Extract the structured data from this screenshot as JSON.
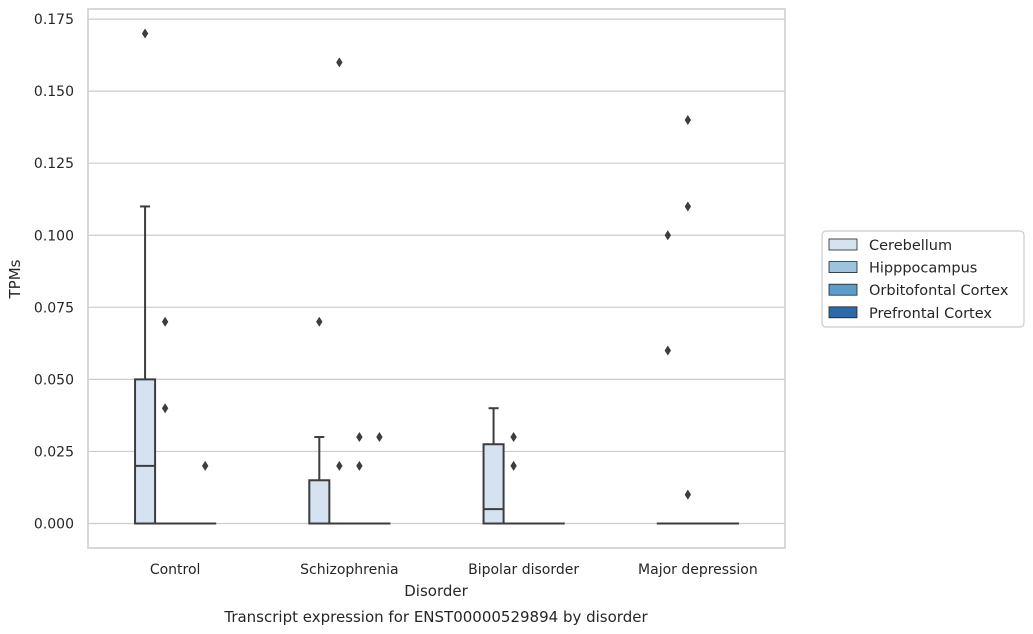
{
  "chart_data": {
    "type": "box",
    "title": "Transcript expression for ENST00000529894 by disorder",
    "xlabel": "Disorder",
    "ylabel": "TPMs",
    "ylim": [
      -0.0085,
      0.1785
    ],
    "yticks": [
      0.0,
      0.025,
      0.05,
      0.075,
      0.1,
      0.125,
      0.15,
      0.175
    ],
    "ytick_labels": [
      "0.000",
      "0.025",
      "0.050",
      "0.075",
      "0.100",
      "0.125",
      "0.150",
      "0.175"
    ],
    "grid": true,
    "legend_position": "right",
    "categories": [
      "Control",
      "Schizophrenia",
      "Bipolar disorder",
      "Major depression"
    ],
    "series": [
      {
        "name": "Cerebellum",
        "color": "#d5e3f1",
        "boxes": [
          {
            "q1": 0.0,
            "median": 0.02,
            "q3": 0.05,
            "whisker_low": 0.0,
            "whisker_high": 0.11,
            "outliers": [
              0.17
            ]
          },
          {
            "q1": 0.0,
            "median": 0.0,
            "q3": 0.015,
            "whisker_low": 0.0,
            "whisker_high": 0.03,
            "outliers": [
              0.07
            ]
          },
          {
            "q1": 0.0,
            "median": 0.005,
            "q3": 0.0275,
            "whisker_low": 0.0,
            "whisker_high": 0.04,
            "outliers": []
          },
          {
            "q1": 0.0,
            "median": 0.0,
            "q3": 0.0,
            "whisker_low": 0.0,
            "whisker_high": 0.0,
            "outliers": [
              0.06,
              0.1
            ]
          }
        ]
      },
      {
        "name": "Hipppocampus",
        "color": "#9cc4de",
        "boxes": [
          {
            "q1": 0.0,
            "median": 0.0,
            "q3": 0.0,
            "whisker_low": 0.0,
            "whisker_high": 0.0,
            "outliers": [
              0.04,
              0.07
            ]
          },
          {
            "q1": 0.0,
            "median": 0.0,
            "q3": 0.0,
            "whisker_low": 0.0,
            "whisker_high": 0.0,
            "outliers": [
              0.02,
              0.16
            ]
          },
          {
            "q1": 0.0,
            "median": 0.0,
            "q3": 0.0,
            "whisker_low": 0.0,
            "whisker_high": 0.0,
            "outliers": [
              0.02,
              0.03
            ]
          },
          {
            "q1": 0.0,
            "median": 0.0,
            "q3": 0.0,
            "whisker_low": 0.0,
            "whisker_high": 0.0,
            "outliers": [
              0.01,
              0.11,
              0.14
            ]
          }
        ]
      },
      {
        "name": "Orbitofontal Cortex",
        "color": "#5c9ec9",
        "boxes": [
          {
            "q1": 0.0,
            "median": 0.0,
            "q3": 0.0,
            "whisker_low": 0.0,
            "whisker_high": 0.0,
            "outliers": []
          },
          {
            "q1": 0.0,
            "median": 0.0,
            "q3": 0.0,
            "whisker_low": 0.0,
            "whisker_high": 0.0,
            "outliers": [
              0.02,
              0.03
            ]
          },
          {
            "q1": 0.0,
            "median": 0.0,
            "q3": 0.0,
            "whisker_low": 0.0,
            "whisker_high": 0.0,
            "outliers": []
          },
          {
            "q1": 0.0,
            "median": 0.0,
            "q3": 0.0,
            "whisker_low": 0.0,
            "whisker_high": 0.0,
            "outliers": []
          }
        ]
      },
      {
        "name": "Prefrontal Cortex",
        "color": "#2b6ca8",
        "boxes": [
          {
            "q1": 0.0,
            "median": 0.0,
            "q3": 0.0,
            "whisker_low": 0.0,
            "whisker_high": 0.0,
            "outliers": [
              0.02
            ]
          },
          {
            "q1": 0.0,
            "median": 0.0,
            "q3": 0.0,
            "whisker_low": 0.0,
            "whisker_high": 0.0,
            "outliers": [
              0.03
            ]
          },
          {
            "q1": 0.0,
            "median": 0.0,
            "q3": 0.0,
            "whisker_low": 0.0,
            "whisker_high": 0.0,
            "outliers": []
          },
          {
            "q1": 0.0,
            "median": 0.0,
            "q3": 0.0,
            "whisker_low": 0.0,
            "whisker_high": 0.0,
            "outliers": []
          }
        ]
      }
    ]
  }
}
